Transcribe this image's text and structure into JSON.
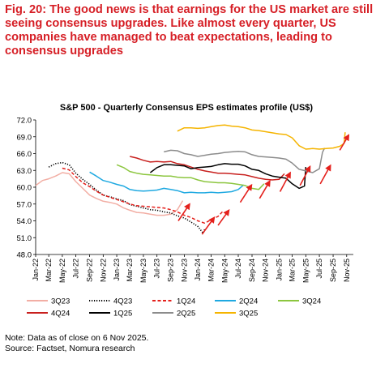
{
  "figure": {
    "title": "Fig. 20: The good news is that earnings for the US market are still seeing consensus upgrades. Like almost every quarter, US companies have managed to beat expectations, leading to consensus upgrades",
    "note": "Note: Data as of close on 6 Nov 2025.",
    "source": "Source: Factset, Nomura research"
  },
  "colors": {
    "title": "#d61f26",
    "arrow": "#e4201c",
    "3Q23": "#f2aea4",
    "4Q23": "#000000",
    "1Q24": "#e4201c",
    "2Q24": "#1fa9e1",
    "3Q24": "#8cc63f",
    "4Q24": "#c8201e",
    "1Q25": "#000000",
    "2Q25": "#8c8c8c",
    "3Q25": "#f5b400"
  },
  "chart_data": {
    "type": "line",
    "title": "S&P 500 - Quarterly Consensus EPS estimates profile (US$)",
    "xlabel": "",
    "ylabel": "",
    "ylim": [
      48.0,
      72.0
    ],
    "yticks": [
      "72.0",
      "69.0",
      "66.0",
      "63.0",
      "60.0",
      "57.0",
      "54.0",
      "51.0",
      "48.0"
    ],
    "xticks": [
      "Jan-22",
      "Mar-22",
      "May-22",
      "Jul-22",
      "Sep-22",
      "Nov-22",
      "Jan-23",
      "Mar-23",
      "May-23",
      "Jul-23",
      "Sep-23",
      "Nov-23",
      "Jan-24",
      "Mar-24",
      "May-24",
      "Jul-24",
      "Sep-24",
      "Nov-24",
      "Jan-25",
      "Mar-25",
      "May-25",
      "Jul-25",
      "Sep-25",
      "Nov-25"
    ],
    "grid": false,
    "legend_position": "bottom",
    "series": [
      {
        "name": "3Q23",
        "style": "solid",
        "points": [
          [
            "2022-01-01",
            60.3
          ],
          [
            "2022-02-01",
            61.2
          ],
          [
            "2022-03-01",
            61.5
          ],
          [
            "2022-04-01",
            62.0
          ],
          [
            "2022-05-01",
            62.6
          ],
          [
            "2022-06-01",
            62.4
          ],
          [
            "2022-07-01",
            61.0
          ],
          [
            "2022-08-01",
            59.8
          ],
          [
            "2022-09-01",
            58.6
          ],
          [
            "2022-10-01",
            58.0
          ],
          [
            "2022-11-01",
            57.5
          ],
          [
            "2022-12-01",
            57.3
          ],
          [
            "2023-01-01",
            57.0
          ],
          [
            "2023-02-01",
            56.3
          ],
          [
            "2023-03-01",
            55.9
          ],
          [
            "2023-04-01",
            55.5
          ],
          [
            "2023-05-01",
            55.4
          ],
          [
            "2023-06-01",
            55.2
          ],
          [
            "2023-07-01",
            55.0
          ],
          [
            "2023-08-01",
            55.0
          ],
          [
            "2023-09-01",
            55.2
          ],
          [
            "2023-10-01",
            56.0
          ],
          [
            "2023-10-25",
            57.6
          ]
        ]
      },
      {
        "name": "4Q23",
        "style": "dotted",
        "points": [
          [
            "2022-03-01",
            63.6
          ],
          [
            "2022-04-01",
            64.2
          ],
          [
            "2022-05-01",
            64.4
          ],
          [
            "2022-06-01",
            64.0
          ],
          [
            "2022-07-01",
            62.5
          ],
          [
            "2022-08-01",
            61.4
          ],
          [
            "2022-09-01",
            60.5
          ],
          [
            "2022-10-01",
            59.5
          ],
          [
            "2022-11-01",
            58.6
          ],
          [
            "2022-12-01",
            58.3
          ],
          [
            "2023-01-01",
            57.9
          ],
          [
            "2023-02-01",
            57.6
          ],
          [
            "2023-03-01",
            56.9
          ],
          [
            "2023-04-01",
            56.6
          ],
          [
            "2023-05-01",
            56.3
          ],
          [
            "2023-06-01",
            56.0
          ],
          [
            "2023-07-01",
            55.9
          ],
          [
            "2023-08-01",
            55.6
          ],
          [
            "2023-09-01",
            55.4
          ],
          [
            "2023-10-01",
            54.9
          ],
          [
            "2023-11-01",
            54.5
          ],
          [
            "2023-12-01",
            53.8
          ],
          [
            "2024-01-01",
            53.0
          ],
          [
            "2024-01-25",
            51.8
          ],
          [
            "2024-02-01",
            52.5
          ]
        ]
      },
      {
        "name": "1Q24",
        "style": "dashed",
        "points": [
          [
            "2022-05-01",
            63.4
          ],
          [
            "2022-06-01",
            63.1
          ],
          [
            "2022-07-01",
            61.9
          ],
          [
            "2022-08-01",
            60.8
          ],
          [
            "2022-09-01",
            60.1
          ],
          [
            "2022-10-01",
            59.3
          ],
          [
            "2022-11-01",
            58.6
          ],
          [
            "2022-12-01",
            58.2
          ],
          [
            "2023-01-01",
            57.8
          ],
          [
            "2023-02-01",
            57.4
          ],
          [
            "2023-03-01",
            57.0
          ],
          [
            "2023-04-01",
            56.7
          ],
          [
            "2023-05-01",
            56.6
          ],
          [
            "2023-06-01",
            56.5
          ],
          [
            "2023-07-01",
            56.4
          ],
          [
            "2023-08-01",
            56.3
          ],
          [
            "2023-09-01",
            56.0
          ],
          [
            "2023-10-01",
            55.6
          ],
          [
            "2023-11-01",
            55.0
          ],
          [
            "2023-12-01",
            54.6
          ],
          [
            "2024-01-01",
            54.0
          ],
          [
            "2024-02-01",
            53.6
          ],
          [
            "2024-03-01",
            54.2
          ],
          [
            "2024-04-01",
            54.8
          ],
          [
            "2024-04-25",
            55.8
          ]
        ]
      },
      {
        "name": "2Q24",
        "style": "solid",
        "points": [
          [
            "2022-09-01",
            62.7
          ],
          [
            "2022-10-01",
            62.0
          ],
          [
            "2022-11-01",
            61.2
          ],
          [
            "2022-12-01",
            60.9
          ],
          [
            "2023-01-01",
            60.5
          ],
          [
            "2023-02-01",
            60.2
          ],
          [
            "2023-03-01",
            59.6
          ],
          [
            "2023-04-01",
            59.4
          ],
          [
            "2023-05-01",
            59.3
          ],
          [
            "2023-06-01",
            59.4
          ],
          [
            "2023-07-01",
            59.5
          ],
          [
            "2023-08-01",
            59.8
          ],
          [
            "2023-09-01",
            59.6
          ],
          [
            "2023-10-01",
            59.4
          ],
          [
            "2023-11-01",
            59.0
          ],
          [
            "2023-12-01",
            59.1
          ],
          [
            "2024-01-01",
            59.0
          ],
          [
            "2024-02-01",
            59.0
          ],
          [
            "2024-03-01",
            59.1
          ],
          [
            "2024-04-01",
            59.0
          ],
          [
            "2024-05-01",
            59.1
          ],
          [
            "2024-06-01",
            59.2
          ],
          [
            "2024-07-01",
            59.6
          ],
          [
            "2024-07-25",
            60.4
          ]
        ]
      },
      {
        "name": "3Q24",
        "style": "solid",
        "points": [
          [
            "2023-01-01",
            64.0
          ],
          [
            "2023-02-01",
            63.5
          ],
          [
            "2023-03-01",
            62.8
          ],
          [
            "2023-04-01",
            62.5
          ],
          [
            "2023-05-01",
            62.3
          ],
          [
            "2023-06-01",
            62.2
          ],
          [
            "2023-07-01",
            62.1
          ],
          [
            "2023-08-01",
            62.0
          ],
          [
            "2023-09-01",
            62.0
          ],
          [
            "2023-10-01",
            61.8
          ],
          [
            "2023-11-01",
            61.7
          ],
          [
            "2023-12-01",
            61.7
          ],
          [
            "2024-01-01",
            61.3
          ],
          [
            "2024-02-01",
            61.0
          ],
          [
            "2024-03-01",
            60.9
          ],
          [
            "2024-04-01",
            60.8
          ],
          [
            "2024-05-01",
            60.8
          ],
          [
            "2024-06-01",
            60.7
          ],
          [
            "2024-07-01",
            60.5
          ],
          [
            "2024-08-01",
            60.3
          ],
          [
            "2024-09-01",
            59.8
          ],
          [
            "2024-10-01",
            59.6
          ],
          [
            "2024-10-25",
            60.6
          ]
        ]
      },
      {
        "name": "4Q24",
        "style": "solid",
        "points": [
          [
            "2023-03-01",
            65.5
          ],
          [
            "2023-04-01",
            65.2
          ],
          [
            "2023-05-01",
            64.8
          ],
          [
            "2023-06-01",
            64.5
          ],
          [
            "2023-07-01",
            64.6
          ],
          [
            "2023-08-01",
            64.5
          ],
          [
            "2023-09-01",
            64.6
          ],
          [
            "2023-10-01",
            64.2
          ],
          [
            "2023-11-01",
            64.0
          ],
          [
            "2023-12-01",
            63.6
          ],
          [
            "2024-01-01",
            63.2
          ],
          [
            "2024-02-01",
            62.9
          ],
          [
            "2024-03-01",
            62.7
          ],
          [
            "2024-04-01",
            62.5
          ],
          [
            "2024-05-01",
            62.5
          ],
          [
            "2024-06-01",
            62.4
          ],
          [
            "2024-07-01",
            62.3
          ],
          [
            "2024-08-01",
            62.2
          ],
          [
            "2024-09-01",
            61.9
          ],
          [
            "2024-10-01",
            61.6
          ],
          [
            "2024-11-01",
            61.4
          ],
          [
            "2024-12-01",
            61.3
          ],
          [
            "2025-01-01",
            61.4
          ],
          [
            "2025-01-25",
            62.4
          ]
        ]
      },
      {
        "name": "1Q25",
        "style": "solid",
        "points": [
          [
            "2023-06-01",
            62.6
          ],
          [
            "2023-07-01",
            63.5
          ],
          [
            "2023-08-01",
            64.0
          ],
          [
            "2023-09-01",
            64.0
          ],
          [
            "2023-10-01",
            63.9
          ],
          [
            "2023-11-01",
            63.8
          ],
          [
            "2023-12-01",
            63.3
          ],
          [
            "2024-01-01",
            63.5
          ],
          [
            "2024-02-01",
            63.6
          ],
          [
            "2024-03-01",
            63.7
          ],
          [
            "2024-04-01",
            64.0
          ],
          [
            "2024-05-01",
            64.2
          ],
          [
            "2024-06-01",
            64.1
          ],
          [
            "2024-07-01",
            64.1
          ],
          [
            "2024-08-01",
            63.8
          ],
          [
            "2024-09-01",
            63.2
          ],
          [
            "2024-10-01",
            63.0
          ],
          [
            "2024-11-01",
            62.4
          ],
          [
            "2024-12-01",
            62.0
          ],
          [
            "2025-01-01",
            61.8
          ],
          [
            "2025-02-01",
            61.6
          ],
          [
            "2025-03-01",
            60.6
          ],
          [
            "2025-04-01",
            59.8
          ],
          [
            "2025-04-25",
            60.2
          ],
          [
            "2025-05-01",
            63.6
          ]
        ]
      },
      {
        "name": "2Q25",
        "style": "solid",
        "points": [
          [
            "2023-08-01",
            66.3
          ],
          [
            "2023-09-01",
            66.6
          ],
          [
            "2023-10-01",
            66.5
          ],
          [
            "2023-11-01",
            66.0
          ],
          [
            "2023-12-01",
            65.8
          ],
          [
            "2024-01-01",
            65.5
          ],
          [
            "2024-02-01",
            65.7
          ],
          [
            "2024-03-01",
            65.9
          ],
          [
            "2024-04-01",
            66.0
          ],
          [
            "2024-05-01",
            66.2
          ],
          [
            "2024-06-01",
            66.3
          ],
          [
            "2024-07-01",
            66.4
          ],
          [
            "2024-08-01",
            66.3
          ],
          [
            "2024-09-01",
            65.8
          ],
          [
            "2024-10-01",
            65.5
          ],
          [
            "2024-11-01",
            65.4
          ],
          [
            "2024-12-01",
            65.3
          ],
          [
            "2025-01-01",
            65.2
          ],
          [
            "2025-02-01",
            65.0
          ],
          [
            "2025-03-01",
            64.3
          ],
          [
            "2025-04-01",
            63.2
          ],
          [
            "2025-05-01",
            62.9
          ],
          [
            "2025-06-01",
            62.6
          ],
          [
            "2025-07-01",
            63.3
          ],
          [
            "2025-07-15",
            66.2
          ],
          [
            "2025-07-25",
            67.0
          ]
        ]
      },
      {
        "name": "3Q25",
        "style": "solid",
        "points": [
          [
            "2023-10-01",
            70.0
          ],
          [
            "2023-11-01",
            70.6
          ],
          [
            "2023-12-01",
            70.6
          ],
          [
            "2024-01-01",
            70.5
          ],
          [
            "2024-02-01",
            70.6
          ],
          [
            "2024-03-01",
            70.8
          ],
          [
            "2024-04-01",
            71.0
          ],
          [
            "2024-05-01",
            71.1
          ],
          [
            "2024-06-01",
            70.9
          ],
          [
            "2024-07-01",
            70.8
          ],
          [
            "2024-08-01",
            70.6
          ],
          [
            "2024-09-01",
            70.2
          ],
          [
            "2024-10-01",
            70.1
          ],
          [
            "2024-11-01",
            69.9
          ],
          [
            "2024-12-01",
            69.7
          ],
          [
            "2025-01-01",
            69.5
          ],
          [
            "2025-02-01",
            69.4
          ],
          [
            "2025-03-01",
            68.8
          ],
          [
            "2025-04-01",
            67.4
          ],
          [
            "2025-05-01",
            66.8
          ],
          [
            "2025-06-01",
            66.9
          ],
          [
            "2025-07-01",
            66.8
          ],
          [
            "2025-08-01",
            66.9
          ],
          [
            "2025-09-01",
            67.0
          ],
          [
            "2025-10-01",
            67.3
          ],
          [
            "2025-10-20",
            67.8
          ],
          [
            "2025-10-25",
            69.8
          ]
        ]
      }
    ],
    "arrows": [
      {
        "from": [
          "2023-10-05",
          54.0
        ],
        "to": [
          "2023-11-25",
          57.0
        ]
      },
      {
        "from": [
          "2024-01-20",
          51.6
        ],
        "to": [
          "2024-03-15",
          54.6
        ]
      },
      {
        "from": [
          "2024-04-01",
          53.2
        ],
        "to": [
          "2024-05-20",
          55.9
        ]
      },
      {
        "from": [
          "2024-07-10",
          57.3
        ],
        "to": [
          "2024-08-30",
          60.4
        ]
      },
      {
        "from": [
          "2024-10-05",
          58.0
        ],
        "to": [
          "2024-11-20",
          61.1
        ]
      },
      {
        "from": [
          "2025-01-05",
          59.2
        ],
        "to": [
          "2025-02-20",
          62.6
        ]
      },
      {
        "from": [
          "2025-04-05",
          60.3
        ],
        "to": [
          "2025-05-20",
          63.7
        ]
      },
      {
        "from": [
          "2025-07-05",
          60.6
        ],
        "to": [
          "2025-08-20",
          63.9
        ]
      },
      {
        "from": [
          "2025-10-01",
          66.6
        ],
        "to": [
          "2025-11-10",
          69.3
        ]
      }
    ]
  }
}
